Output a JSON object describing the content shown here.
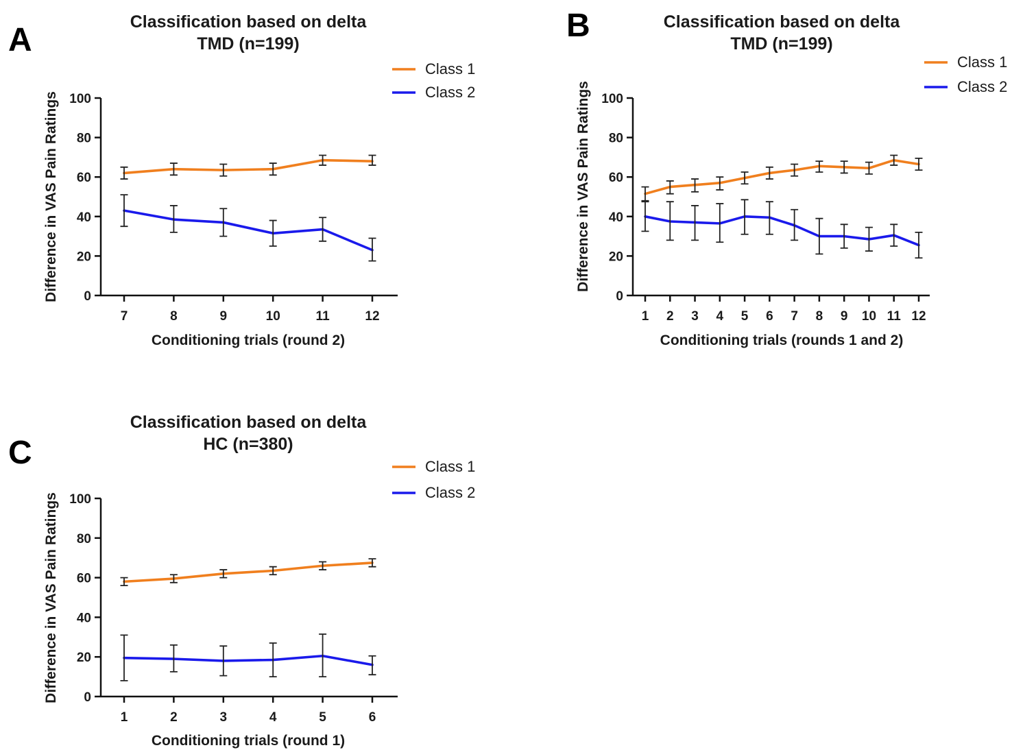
{
  "colors": {
    "class1": "#f07f1e",
    "class2": "#1a1aeb"
  },
  "chart_data": [
    {
      "panel": "A",
      "type": "line",
      "title": [
        "Classification based on delta",
        "TMD (n=199)"
      ],
      "xlabel": "Conditioning trials (round 2)",
      "ylabel": "Difference in VAS Pain Ratings",
      "ylim": [
        0,
        100
      ],
      "yticks": [
        0,
        20,
        40,
        60,
        80,
        100
      ],
      "categories": [
        "7",
        "8",
        "9",
        "10",
        "11",
        "12"
      ],
      "legend": [
        "Class 1",
        "Class 2"
      ],
      "legend_position": "top-right",
      "series": [
        {
          "name": "Class 1",
          "color_key": "class1",
          "values": [
            62,
            64,
            63.5,
            64,
            68.5,
            68
          ],
          "err_low": [
            59,
            61,
            60.5,
            61,
            66,
            66
          ],
          "err_high": [
            65,
            67,
            66.5,
            67,
            71,
            71
          ]
        },
        {
          "name": "Class 2",
          "color_key": "class2",
          "values": [
            43,
            38.5,
            37,
            31.5,
            33.5,
            23
          ],
          "err_low": [
            35,
            32,
            30,
            25,
            27.5,
            17.5
          ],
          "err_high": [
            51,
            45.5,
            44,
            38,
            39.5,
            29
          ]
        }
      ]
    },
    {
      "panel": "B",
      "type": "line",
      "title": [
        "Classification based on delta",
        "TMD (n=199)"
      ],
      "xlabel": "Conditioning trials (rounds 1 and 2)",
      "ylabel": "Difference in VAS Pain Ratings",
      "ylim": [
        0,
        100
      ],
      "yticks": [
        0,
        20,
        40,
        60,
        80,
        100
      ],
      "categories": [
        "1",
        "2",
        "3",
        "4",
        "5",
        "6",
        "7",
        "8",
        "9",
        "10",
        "11",
        "12"
      ],
      "legend": [
        "Class 1",
        "Class 2"
      ],
      "legend_position": "top-right",
      "series": [
        {
          "name": "Class 1",
          "color_key": "class1",
          "values": [
            51.5,
            55,
            56,
            57,
            59.5,
            62,
            63.5,
            65.5,
            65,
            64.5,
            68.5,
            66.5
          ],
          "err_low": [
            48,
            51.5,
            52.5,
            53.5,
            56.5,
            59,
            60.5,
            62.5,
            62,
            61.5,
            66,
            63.5
          ],
          "err_high": [
            55,
            58,
            59,
            60,
            62.5,
            65,
            66.5,
            68,
            68,
            67.5,
            71,
            69.5
          ]
        },
        {
          "name": "Class 2",
          "color_key": "class2",
          "values": [
            40,
            37.5,
            37,
            36.5,
            40,
            39.5,
            35.5,
            30,
            30,
            28.5,
            30.5,
            25.5
          ],
          "err_low": [
            32.5,
            28,
            28,
            27,
            31,
            31,
            28,
            21,
            24,
            22.5,
            25,
            19
          ],
          "err_high": [
            47.5,
            47.5,
            45.5,
            46.5,
            48.5,
            47.5,
            43.5,
            39,
            36,
            34.5,
            36,
            32
          ]
        }
      ]
    },
    {
      "panel": "C",
      "type": "line",
      "title": [
        "Classification based on delta",
        "HC (n=380)"
      ],
      "xlabel": "Conditioning trials (round 1)",
      "ylabel": "Difference in VAS Pain Ratings",
      "ylim": [
        0,
        100
      ],
      "yticks": [
        0,
        20,
        40,
        60,
        80,
        100
      ],
      "categories": [
        "1",
        "2",
        "3",
        "4",
        "5",
        "6"
      ],
      "legend": [
        "Class 1",
        "Class 2"
      ],
      "legend_position": "top-right",
      "series": [
        {
          "name": "Class 1",
          "color_key": "class1",
          "values": [
            58,
            59.5,
            62,
            63.5,
            66,
            67.5
          ],
          "err_low": [
            56,
            57.5,
            60,
            61.5,
            64,
            65.5
          ],
          "err_high": [
            60,
            61.5,
            64,
            65.5,
            68,
            69.5
          ]
        },
        {
          "name": "Class 2",
          "color_key": "class2",
          "values": [
            19.5,
            19,
            18,
            18.5,
            20.5,
            16
          ],
          "err_low": [
            8,
            12.5,
            10.5,
            10,
            10,
            11
          ],
          "err_high": [
            31,
            26,
            25.5,
            27,
            31.5,
            20.5
          ]
        }
      ]
    }
  ]
}
